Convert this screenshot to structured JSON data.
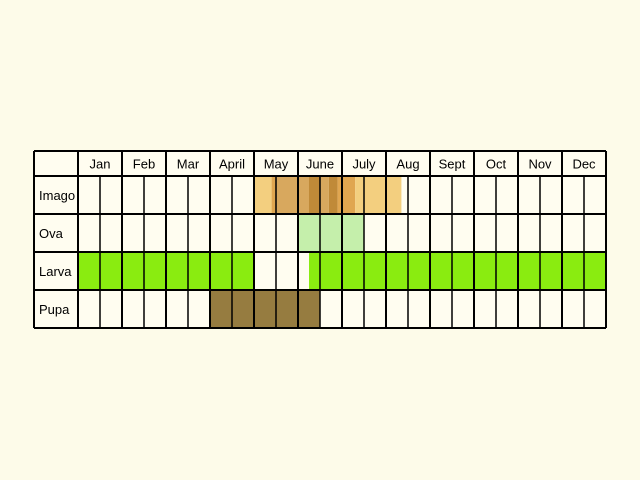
{
  "months": [
    "Jan",
    "Feb",
    "Mar",
    "April",
    "May",
    "June",
    "July",
    "Aug",
    "Sept",
    "Oct",
    "Nov",
    "Dec"
  ],
  "stages": [
    {
      "label": "Imago",
      "blocks": [
        {
          "half": 8,
          "from": 0.0,
          "to": 0.8,
          "color": "#f3cf7f"
        },
        {
          "half": 8,
          "from": 0.8,
          "to": 1.0,
          "color": "#e0a650"
        },
        {
          "half": 9,
          "from": 0.0,
          "to": 1.0,
          "color": "#d8a85e"
        },
        {
          "half": 10,
          "from": 0.0,
          "to": 0.5,
          "color": "#d8a85e"
        },
        {
          "half": 10,
          "from": 0.5,
          "to": 1.0,
          "color": "#c08a38"
        },
        {
          "half": 11,
          "from": 0.0,
          "to": 0.4,
          "color": "#d8a85e"
        },
        {
          "half": 11,
          "from": 0.4,
          "to": 0.8,
          "color": "#c08a38"
        },
        {
          "half": 11,
          "from": 0.8,
          "to": 1.0,
          "color": "#e0a650"
        },
        {
          "half": 12,
          "from": 0.0,
          "to": 0.6,
          "color": "#e0a650"
        },
        {
          "half": 12,
          "from": 0.6,
          "to": 1.0,
          "color": "#f3cf7f"
        },
        {
          "half": 13,
          "from": 0.0,
          "to": 1.0,
          "color": "#f3cf7f"
        },
        {
          "half": 14,
          "from": 0.0,
          "to": 0.7,
          "color": "#f3cf7f"
        }
      ]
    },
    {
      "label": "Ova",
      "blocks": [
        {
          "half": 10,
          "from": 0.0,
          "to": 1.0,
          "color": "#c5efab"
        },
        {
          "half": 11,
          "from": 0.0,
          "to": 1.0,
          "color": "#c5efab"
        },
        {
          "half": 12,
          "from": 0.0,
          "to": 1.0,
          "color": "#c5efab"
        }
      ]
    },
    {
      "label": "Larva",
      "blocks": [
        {
          "half": 0,
          "from": 0.0,
          "to": 1.0,
          "color": "#8aec10"
        },
        {
          "half": 1,
          "from": 0.0,
          "to": 1.0,
          "color": "#8aec10"
        },
        {
          "half": 2,
          "from": 0.0,
          "to": 1.0,
          "color": "#8aec10"
        },
        {
          "half": 3,
          "from": 0.0,
          "to": 1.0,
          "color": "#8aec10"
        },
        {
          "half": 4,
          "from": 0.0,
          "to": 1.0,
          "color": "#8aec10"
        },
        {
          "half": 5,
          "from": 0.0,
          "to": 1.0,
          "color": "#8aec10"
        },
        {
          "half": 6,
          "from": 0.0,
          "to": 1.0,
          "color": "#8aec10"
        },
        {
          "half": 7,
          "from": 0.0,
          "to": 1.0,
          "color": "#8aec10"
        },
        {
          "half": 10,
          "from": 0.5,
          "to": 1.0,
          "color": "#8aec10"
        },
        {
          "half": 11,
          "from": 0.0,
          "to": 1.0,
          "color": "#8aec10"
        },
        {
          "half": 12,
          "from": 0.0,
          "to": 1.0,
          "color": "#8aec10"
        },
        {
          "half": 13,
          "from": 0.0,
          "to": 1.0,
          "color": "#8aec10"
        },
        {
          "half": 14,
          "from": 0.0,
          "to": 1.0,
          "color": "#8aec10"
        },
        {
          "half": 15,
          "from": 0.0,
          "to": 1.0,
          "color": "#8aec10"
        },
        {
          "half": 16,
          "from": 0.0,
          "to": 1.0,
          "color": "#8aec10"
        },
        {
          "half": 17,
          "from": 0.0,
          "to": 1.0,
          "color": "#8aec10"
        },
        {
          "half": 18,
          "from": 0.0,
          "to": 1.0,
          "color": "#8aec10"
        },
        {
          "half": 19,
          "from": 0.0,
          "to": 1.0,
          "color": "#8aec10"
        },
        {
          "half": 20,
          "from": 0.0,
          "to": 1.0,
          "color": "#8aec10"
        },
        {
          "half": 21,
          "from": 0.0,
          "to": 1.0,
          "color": "#8aec10"
        },
        {
          "half": 22,
          "from": 0.0,
          "to": 1.0,
          "color": "#8aec10"
        },
        {
          "half": 23,
          "from": 0.0,
          "to": 1.0,
          "color": "#8aec10"
        }
      ]
    },
    {
      "label": "Pupa",
      "blocks": [
        {
          "half": 6,
          "from": 0.0,
          "to": 1.0,
          "color": "#967c40"
        },
        {
          "half": 7,
          "from": 0.0,
          "to": 1.0,
          "color": "#967c40"
        },
        {
          "half": 8,
          "from": 0.0,
          "to": 1.0,
          "color": "#967c40"
        },
        {
          "half": 9,
          "from": 0.0,
          "to": 1.0,
          "color": "#967c40"
        },
        {
          "half": 10,
          "from": 0.0,
          "to": 1.0,
          "color": "#967c40"
        }
      ]
    }
  ],
  "colors": {
    "background": "#fdfbe9",
    "cell": "#fffdf0",
    "grid": "#000000"
  }
}
